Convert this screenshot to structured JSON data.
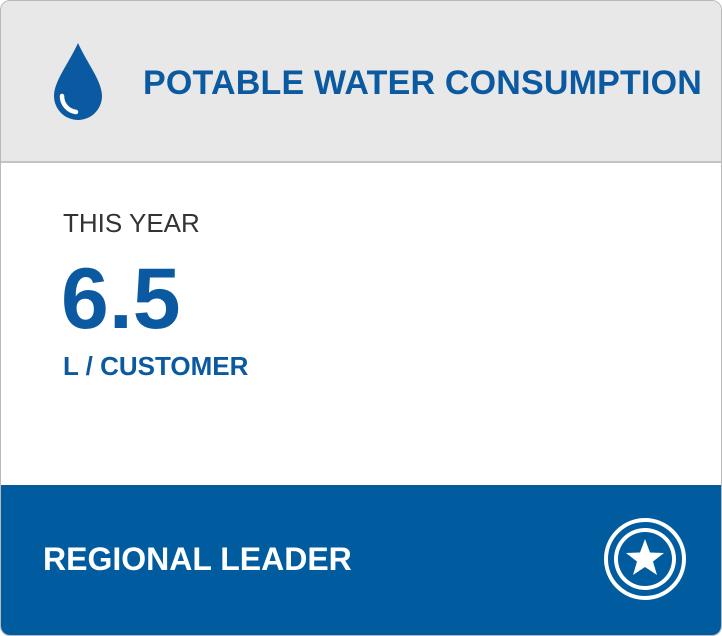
{
  "header": {
    "icon": "water-drop-icon",
    "title": "POTABLE WATER CONSUMPTION"
  },
  "metric": {
    "period_label": "THIS YEAR",
    "value": "6.5",
    "unit": "L / CUSTOMER"
  },
  "footer": {
    "label": "REGIONAL LEADER",
    "badge_icon": "star-badge-icon"
  },
  "colors": {
    "accent_blue": "#0b5aa1",
    "footer_blue": "#005c9f",
    "header_gray": "#e8e8e8"
  }
}
